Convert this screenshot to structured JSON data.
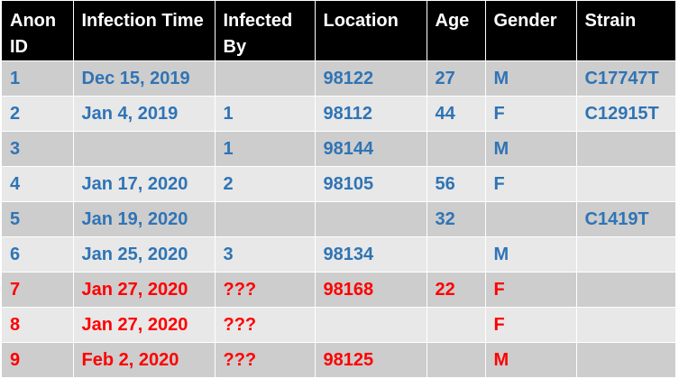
{
  "table": {
    "columns": [
      "Anon ID",
      "Infection Time",
      "Infected By",
      "Location",
      "Age",
      "Gender",
      "Strain"
    ],
    "rows": [
      {
        "id": "1",
        "time": "Dec 15, 2019",
        "by": "",
        "location": "98122",
        "age": "27",
        "gender": "M",
        "strain": "C17747T"
      },
      {
        "id": "2",
        "time": "Jan 4, 2019",
        "by": "1",
        "location": "98112",
        "age": "44",
        "gender": "F",
        "strain": "C12915T"
      },
      {
        "id": "3",
        "time": "",
        "by": "1",
        "location": "98144",
        "age": "",
        "gender": "M",
        "strain": ""
      },
      {
        "id": "4",
        "time": "Jan 17, 2020",
        "by": "2",
        "location": "98105",
        "age": "56",
        "gender": "F",
        "strain": ""
      },
      {
        "id": "5",
        "time": "Jan 19, 2020",
        "by": "",
        "location": "",
        "age": "32",
        "gender": "",
        "strain": "C1419T"
      },
      {
        "id": "6",
        "time": "Jan 25, 2020",
        "by": "3",
        "location": "98134",
        "age": "",
        "gender": "M",
        "strain": ""
      },
      {
        "id": "7",
        "time": "Jan 27, 2020",
        "by": "???",
        "location": "98168",
        "age": "22",
        "gender": "F",
        "strain": ""
      },
      {
        "id": "8",
        "time": "Jan 27, 2020",
        "by": "???",
        "location": "",
        "age": "",
        "gender": "F",
        "strain": ""
      },
      {
        "id": "9",
        "time": "Feb 2, 2020",
        "by": "???",
        "location": "98125",
        "age": "",
        "gender": "M",
        "strain": ""
      }
    ]
  },
  "colors": {
    "header_bg": "#000000",
    "header_text": "#ffffff",
    "row_odd_bg": "#cdcdcd",
    "row_even_bg": "#e8e8e8",
    "known_text": "#2f74b5",
    "unknown_text": "#fe0000"
  }
}
